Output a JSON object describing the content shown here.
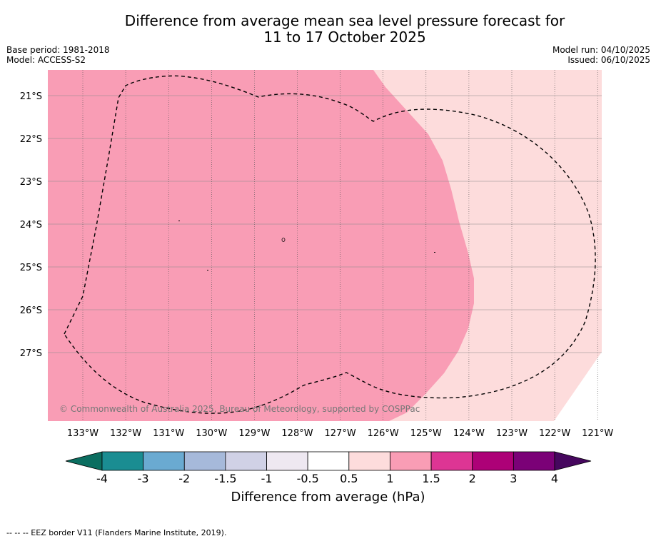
{
  "title_line1": "Difference from average mean sea level pressure forecast for",
  "title_line2": "11 to 17 October 2025",
  "meta_left": {
    "base_period": "Base period: 1981-2018",
    "model": "Model: ACCESS-S2"
  },
  "meta_right": {
    "model_run": "Model run: 04/10/2025",
    "issued": "Issued: 06/10/2025"
  },
  "map": {
    "lat_labels": [
      "21°S",
      "22°S",
      "23°S",
      "24°S",
      "25°S",
      "26°S",
      "27°S"
    ],
    "lon_labels": [
      "133°W",
      "132°W",
      "131°W",
      "130°W",
      "129°W",
      "128°W",
      "127°W",
      "126°W",
      "125°W",
      "124°W",
      "123°W",
      "122°W",
      "121°W"
    ],
    "copyright": "© Commonwealth of Australia 2025, Bureau of Meteorology, supported by COSPPac",
    "region_colors": {
      "anomaly_1_to_1_5": "#f99db5",
      "anomaly_0_5_to_1": "#fddcdc",
      "land": "#000000"
    }
  },
  "colorbar": {
    "ticks": [
      "-4",
      "-3",
      "-2",
      "-1.5",
      "-1",
      "-0.5",
      "0.5",
      "1",
      "1.5",
      "2",
      "3",
      "4"
    ],
    "low_extend_color": "#0b6e60",
    "high_extend_color": "#46075e",
    "segment_colors": [
      "#1a8d92",
      "#6aaad1",
      "#a6b9da",
      "#d0d1e6",
      "#eee8f1",
      "#ffffff",
      "#fddcdc",
      "#f99db5",
      "#dd3594",
      "#ad0177",
      "#7b0177"
    ],
    "label": "Difference from average (hPa)"
  },
  "footer": {
    "eez_legend": "--  --  -- EEZ border V11 (Flanders Marine Institute, 2019)."
  }
}
